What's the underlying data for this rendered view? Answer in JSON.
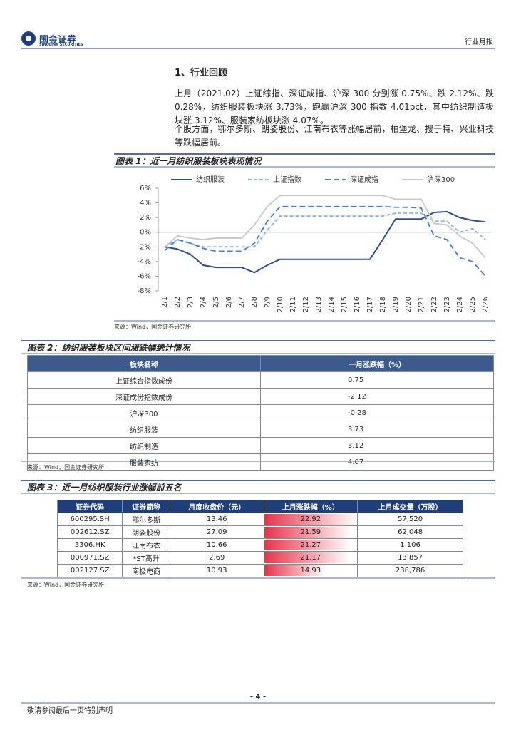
{
  "header": {
    "logo_cn": "国金证券",
    "logo_en": "SINOLINK SECURITIES",
    "report_type": "行业月报"
  },
  "section": {
    "heading": "1、行业回顾",
    "paragraphs": [
      "上月（2021.02）上证综指、深证成指、沪深 300 分别涨 0.75%、跌 2.12%、跌 0.28%，纺织服装板块涨 3.73%，跑赢沪深 300 指数 4.01pct，其中纺织制造板块涨 3.12%、服装家纺板块涨 4.07%。",
      "个股方面，鄂尔多斯、朗姿股份、江南布衣等涨幅居前，柏堡龙、搜于特、兴业科技等跌幅居前。"
    ]
  },
  "chart_data": {
    "type": "line",
    "title": "图表 1：近一月纺织服装板块表现情况",
    "categories": [
      "2/1",
      "2/2",
      "2/3",
      "2/4",
      "2/5",
      "2/6",
      "2/7",
      "2/8",
      "2/9",
      "2/10",
      "2/11",
      "2/12",
      "2/13",
      "2/14",
      "2/15",
      "2/16",
      "2/17",
      "2/18",
      "2/19",
      "2/20",
      "2/21",
      "2/22",
      "2/23",
      "2/24",
      "2/25",
      "2/26"
    ],
    "series": [
      {
        "name": "纺织服装",
        "color": "#2f4e8c",
        "values": [
          -2,
          -2.3,
          -3,
          -4.5,
          -4.8,
          -4.8,
          -4.8,
          -5.5,
          -4.5,
          -3.7,
          -3.7,
          -3.7,
          -3.7,
          -3.7,
          -3.7,
          -3.7,
          -3.7,
          -1,
          1.8,
          1.8,
          1.8,
          2.7,
          2.8,
          2,
          1.6,
          1.4
        ]
      },
      {
        "name": "上证指数",
        "color": "#8fb0e0",
        "values": [
          -2,
          -1,
          -1.5,
          -2,
          -2,
          -2,
          -2,
          -2,
          0.3,
          2.2,
          2.2,
          2.2,
          2.2,
          2.2,
          2.2,
          2.2,
          2.2,
          2.2,
          2.6,
          2.6,
          2.6,
          1.5,
          1.5,
          0,
          0.5,
          -1
        ]
      },
      {
        "name": "深证成指",
        "color": "#4a7cc9",
        "values": [
          -2.5,
          -1,
          -1.5,
          -2.2,
          -2.6,
          -2.6,
          -2.6,
          -1.5,
          1.5,
          3.5,
          3.5,
          3.5,
          3.5,
          3.5,
          3.5,
          3.5,
          3.5,
          3.5,
          3.4,
          3.4,
          3.3,
          -0.5,
          -1,
          -3.5,
          -4,
          -6
        ]
      },
      {
        "name": "沪深300",
        "color": "#c8c8c8",
        "values": [
          -2,
          -0.5,
          -0.8,
          -1,
          -0.8,
          -0.8,
          -0.8,
          1,
          3.5,
          5,
          5,
          5,
          5,
          5,
          5,
          5,
          5,
          5,
          4.5,
          4.5,
          4.5,
          1.2,
          1,
          -0.5,
          -1.5,
          -3.5
        ]
      }
    ],
    "ylim": [
      -8,
      6
    ],
    "yticks": [
      {
        "value": -8,
        "label": "-8%"
      },
      {
        "value": -6,
        "label": "-6%"
      },
      {
        "value": -4,
        "label": "-4%"
      },
      {
        "value": -2,
        "label": "-2%"
      },
      {
        "value": 0,
        "label": "0%"
      },
      {
        "value": 2,
        "label": "2%"
      },
      {
        "value": 4,
        "label": "4%"
      },
      {
        "value": 6,
        "label": "6%"
      }
    ],
    "source": "来源：Wind，国金证券研究所"
  },
  "table2": {
    "title": "图表 2：纺织服装板块区间涨跌幅统计情况",
    "header": [
      "板块名称",
      "一月涨跌幅（%）"
    ],
    "rows": [
      [
        "上证综合指数成份",
        "0.75"
      ],
      [
        "深证成份指数成份",
        "-2.12"
      ],
      [
        "沪深300",
        "-0.28"
      ],
      [
        "纺织服装",
        "3.73"
      ],
      [
        "纺织制造",
        "3.12"
      ],
      [
        "服装家纺",
        "4.07"
      ]
    ],
    "source": "来源：Wind，国金证券研究所"
  },
  "table3": {
    "title": "图表 3：近一月纺织服装行业涨幅前五名",
    "header": [
      "证券代码",
      "证券简称",
      "月度收盘价（元）",
      "上月涨跌幅（%）",
      "上月成交量（万股）"
    ],
    "rows": [
      [
        "600295.SH",
        "鄂尔多斯",
        "13.46",
        22.92,
        "57,520"
      ],
      [
        "002612.SZ",
        "朗姿股份",
        "27.09",
        21.59,
        "62,048"
      ],
      [
        "3306.HK",
        "江南布衣",
        "10.66",
        21.27,
        "1,106"
      ],
      [
        "000971.SZ",
        "*ST高升",
        "2.69",
        21.17,
        "13,857"
      ],
      [
        "002127.SZ",
        "南极电商",
        "10.93",
        14.93,
        "238,786"
      ]
    ],
    "source": "来源：Wind，国金证券研究所"
  },
  "footer": {
    "page": "- 4 -",
    "disclaimer": "敬请参阅最后一页特别声明"
  }
}
